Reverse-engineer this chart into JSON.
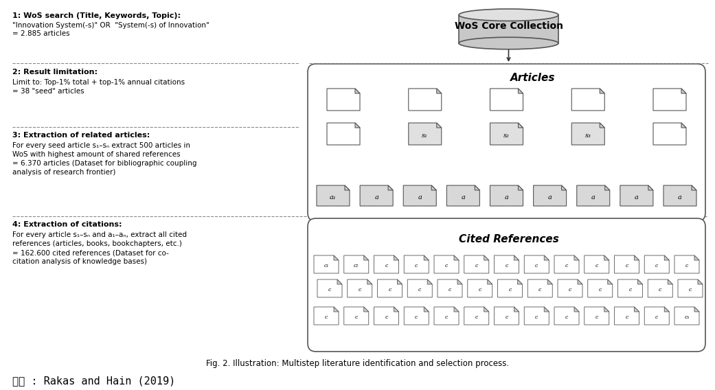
{
  "title": "Fig. 2. Illustration: Multistep literature identification and selection process.",
  "source_text": "출잘 : Rakas and Hain (2019)",
  "wos_label": "WoS Core Collection",
  "articles_label": "Articles",
  "cited_label": "Cited References",
  "step1_title": "1: WoS search (Title, Keywords, Topic):",
  "step1_line1": "\"Innovation System(-s)\" OR  \"System(-s) of Innovation\"",
  "step1_line2": "= 2.885 articles",
  "step2_title": "2: Result limitation:",
  "step2_line1": "Limit to: Top-1% total + top-1% annual citations",
  "step2_line2": "= 38 \"seed\" articles",
  "step3_title": "3: Extraction of related articles:",
  "step3_line1": "For every seed article s₁–sₙ extract 500 articles in",
  "step3_line2": "WoS with highest amount of shared references",
  "step3_line3": "= 6.370 articles (Dataset for bibliographic coupling",
  "step3_line4": "analysis of research frontier)",
  "step4_title": "4: Extraction of citations:",
  "step4_line1": "For every article s₁–sₙ and a₁–aₙ, extract all cited",
  "step4_line2": "references (articles, books, bookchapters, etc.)",
  "step4_line3": "= 162.600 cited references (Dataset for co-",
  "step4_line4": "citation analysis of knowledge bases)",
  "bg_color": "#ffffff",
  "seed_labels": [
    "s₁",
    "s₂",
    "s₃"
  ],
  "article_labels": [
    "a₁",
    "a",
    "a",
    "a",
    "a",
    "a",
    "a",
    "a",
    "a"
  ],
  "source_display": "입체 : Rakas and Hain (2019)"
}
